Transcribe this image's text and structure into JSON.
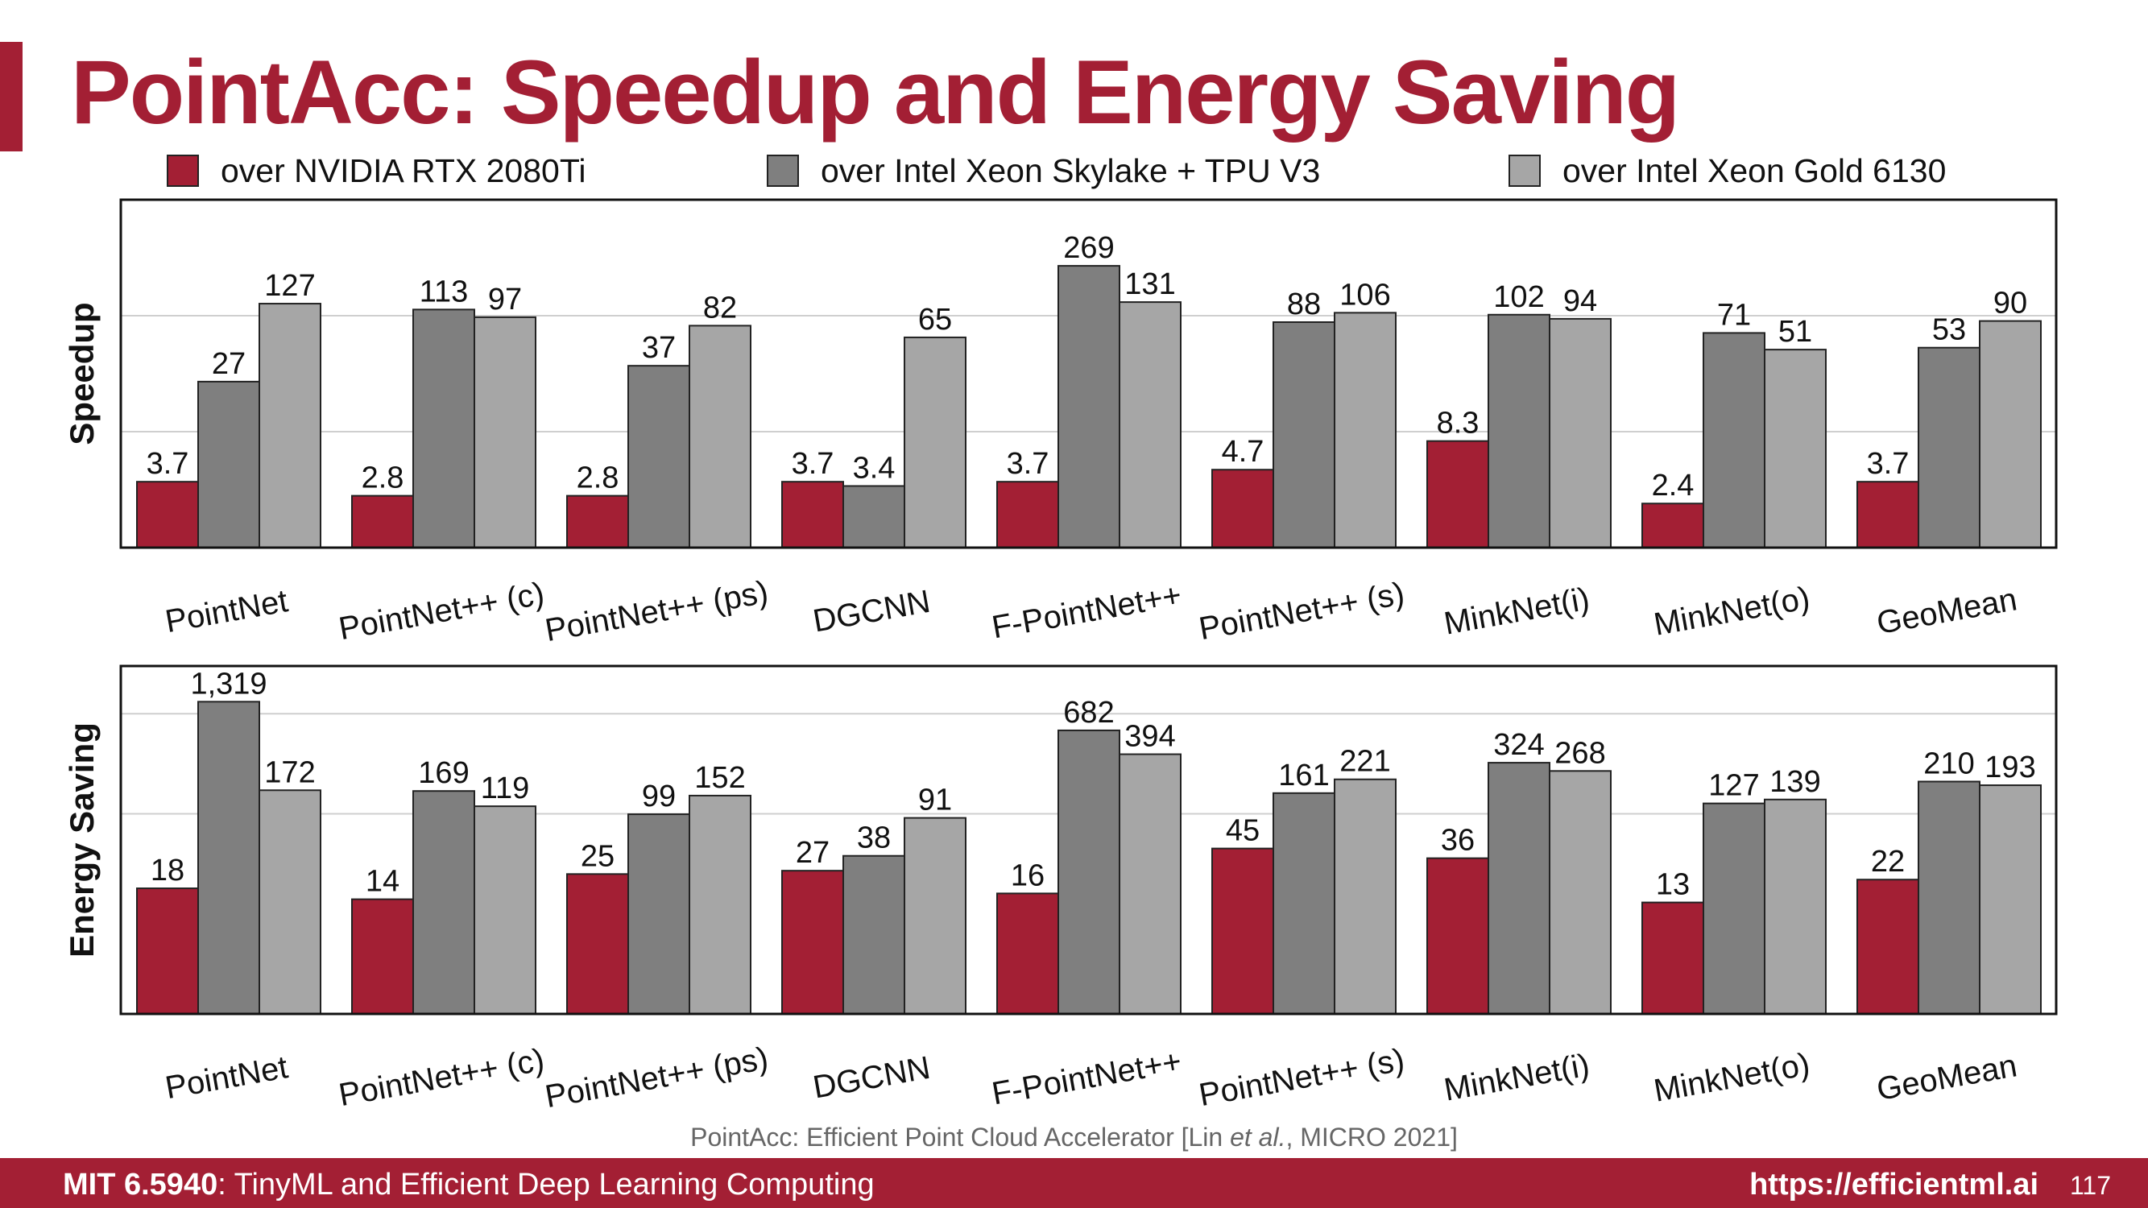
{
  "page": {
    "title": "PointAcc: Speedup and Energy Saving",
    "citation": {
      "prefix": "PointAcc: Efficient Point Cloud Accelerator [Lin ",
      "italic": "et al.",
      "suffix": ", MICRO 2021]"
    },
    "footer": {
      "course_code": "MIT 6.5940",
      "course_name": ": TinyML and Efficient Deep Learning Computing",
      "website": "https://efficientml.ai",
      "page_number": "117"
    }
  },
  "chart_data": [
    {
      "type": "bar",
      "ylabel": "Speedup",
      "yscale": "log",
      "grid": true,
      "legend_position": "top",
      "categories": [
        "PointNet",
        "PointNet++ (c)",
        "PointNet++ (ps)",
        "DGCNN",
        "F-PointNet++",
        "PointNet++ (s)",
        "MinkNet(i)",
        "MinkNet(o)",
        "GeoMean"
      ],
      "series": [
        {
          "name": "over NVIDIA RTX 2080Ti",
          "color": "#a31f34",
          "values": [
            3.7,
            2.8,
            2.8,
            3.7,
            3.7,
            4.7,
            8.3,
            2.4,
            3.7
          ],
          "labels": [
            "3.7",
            "2.8",
            "2.8",
            "3.7",
            "3.7",
            "4.7",
            "8.3",
            "2.4",
            "3.7"
          ]
        },
        {
          "name": "over Intel Xeon Skylake + TPU V3",
          "color": "#7f7f7f",
          "values": [
            27,
            113,
            37,
            3.4,
            269,
            88,
            102,
            71,
            53
          ],
          "labels": [
            "27",
            "113",
            "37",
            "3.4",
            "269",
            "88",
            "102",
            "71",
            "53"
          ]
        },
        {
          "name": "over Intel Xeon Gold 6130",
          "color": "#a6a6a6",
          "values": [
            127,
            97,
            82,
            65,
            131,
            106,
            94,
            51,
            90
          ],
          "labels": [
            "127",
            "97",
            "82",
            "65",
            "131",
            "106",
            "94",
            "51",
            "90"
          ]
        }
      ]
    },
    {
      "type": "bar",
      "ylabel": "Energy Saving",
      "yscale": "log",
      "grid": true,
      "categories": [
        "PointNet",
        "PointNet++ (c)",
        "PointNet++ (ps)",
        "DGCNN",
        "F-PointNet++",
        "PointNet++ (s)",
        "MinkNet(i)",
        "MinkNet(o)",
        "GeoMean"
      ],
      "series": [
        {
          "name": "over NVIDIA RTX 2080Ti",
          "color": "#a31f34",
          "values": [
            18,
            14,
            25,
            27,
            16,
            45,
            36,
            13,
            22
          ],
          "labels": [
            "18",
            "14",
            "25",
            "27",
            "16",
            "45",
            "36",
            "13",
            "22"
          ]
        },
        {
          "name": "over Intel Xeon Skylake + TPU V3",
          "color": "#7f7f7f",
          "values": [
            1319,
            169,
            99,
            38,
            682,
            161,
            324,
            127,
            210
          ],
          "labels": [
            "1,319",
            "169",
            "99",
            "38",
            "682",
            "161",
            "324",
            "127",
            "210"
          ]
        },
        {
          "name": "over Intel Xeon Gold 6130",
          "color": "#a6a6a6",
          "values": [
            172,
            119,
            152,
            91,
            394,
            221,
            268,
            139,
            193
          ],
          "labels": [
            "172",
            "119",
            "152",
            "91",
            "394",
            "221",
            "268",
            "139",
            "193"
          ]
        }
      ]
    }
  ]
}
